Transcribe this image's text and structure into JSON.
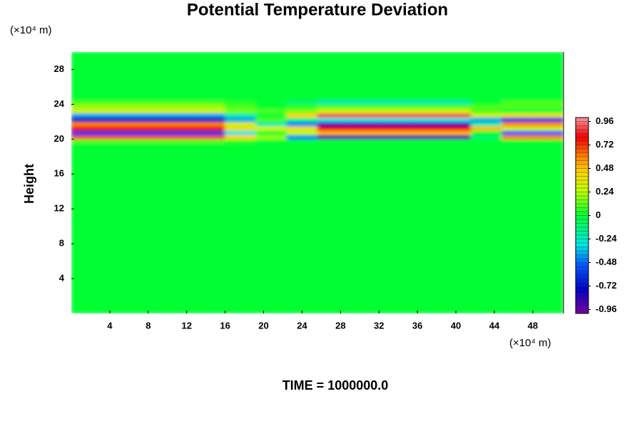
{
  "chart_data": {
    "type": "heatmap",
    "title": "Potential Temperature Deviation",
    "y_label": "Height",
    "y_unit": "(×10⁴ m)",
    "x_unit": "(×10⁴ m)",
    "footer": "TIME = 1000000.0",
    "xlim": [
      0,
      51.2
    ],
    "ylim": [
      0,
      30
    ],
    "xticks": [
      4,
      8,
      12,
      16,
      20,
      24,
      28,
      32,
      36,
      40,
      44,
      48
    ],
    "yticks": [
      4,
      8,
      12,
      16,
      20,
      24,
      28
    ],
    "clim": [
      -1,
      1
    ],
    "cticks": [
      -0.96,
      -0.72,
      -0.48,
      -0.24,
      0,
      0.24,
      0.48,
      0.72,
      0.96
    ],
    "xbins": [
      0,
      3.2,
      6.4,
      9.6,
      12.8,
      16,
      19.2,
      22.4,
      25.6,
      28.8,
      32,
      35.2,
      38.4,
      41.6,
      44.8,
      48,
      51.2
    ],
    "ybins": [
      0,
      19.5,
      20,
      20.5,
      21,
      21.5,
      22,
      22.5,
      23,
      23.5,
      24,
      24.5,
      30
    ],
    "z": [
      [
        0,
        0,
        0,
        0,
        0,
        0,
        0,
        0,
        0,
        0,
        0,
        0,
        0,
        0,
        0,
        0
      ],
      [
        0.1,
        0.1,
        0.1,
        0.1,
        0.1,
        0.05,
        0,
        0,
        0,
        0,
        0,
        0,
        0,
        0,
        0,
        0
      ],
      [
        0.9,
        0.9,
        0.9,
        0.9,
        0.9,
        0.45,
        0.2,
        -0.45,
        -0.9,
        -0.9,
        -0.9,
        -0.9,
        -0.9,
        -0.1,
        0.6,
        0.6
      ],
      [
        -0.6,
        -0.6,
        -0.6,
        -0.6,
        -0.6,
        -0.3,
        0,
        0.25,
        0.5,
        0.5,
        0.5,
        0.5,
        0.5,
        0,
        -0.5,
        -0.5
      ],
      [
        0.8,
        0.8,
        0.8,
        0.8,
        0.8,
        0.4,
        0.3,
        0.4,
        0.8,
        0.8,
        0.8,
        0.8,
        0.8,
        0.5,
        0.3,
        0.3
      ],
      [
        0.6,
        0.6,
        0.6,
        0.6,
        0.6,
        0.3,
        -0.2,
        -0.45,
        -0.9,
        -0.9,
        -0.9,
        -0.9,
        -0.9,
        -0.2,
        0.6,
        0.6
      ],
      [
        -0.8,
        -0.8,
        -0.8,
        -0.8,
        -0.8,
        -0.4,
        0.1,
        -0.15,
        -0.3,
        -0.3,
        -0.3,
        -0.3,
        -0.3,
        -0.4,
        -0.6,
        -0.6
      ],
      [
        -0.4,
        -0.4,
        -0.4,
        -0.4,
        -0.4,
        -0.2,
        0,
        0.45,
        0.9,
        0.9,
        0.9,
        0.9,
        0.9,
        0.3,
        0.4,
        0.4
      ],
      [
        0.3,
        0.3,
        0.3,
        0.3,
        0.3,
        0.15,
        0.1,
        0.15,
        0.3,
        0.3,
        0.3,
        0.3,
        0.3,
        0.1,
        0,
        0
      ],
      [
        0.2,
        0.2,
        0.2,
        0.2,
        0.2,
        0.1,
        0,
        0.05,
        0.1,
        0.1,
        0.1,
        0.1,
        0.1,
        0.1,
        0.1,
        0.1
      ],
      [
        0.1,
        0.1,
        0.1,
        0.1,
        0.1,
        0.05,
        0,
        -0.1,
        -0.2,
        -0.2,
        -0.2,
        -0.2,
        -0.2,
        0,
        0.1,
        0.1
      ],
      [
        0,
        0,
        0,
        0,
        0,
        0,
        0,
        0,
        0,
        0,
        0,
        0,
        0,
        0,
        0,
        0
      ]
    ]
  }
}
